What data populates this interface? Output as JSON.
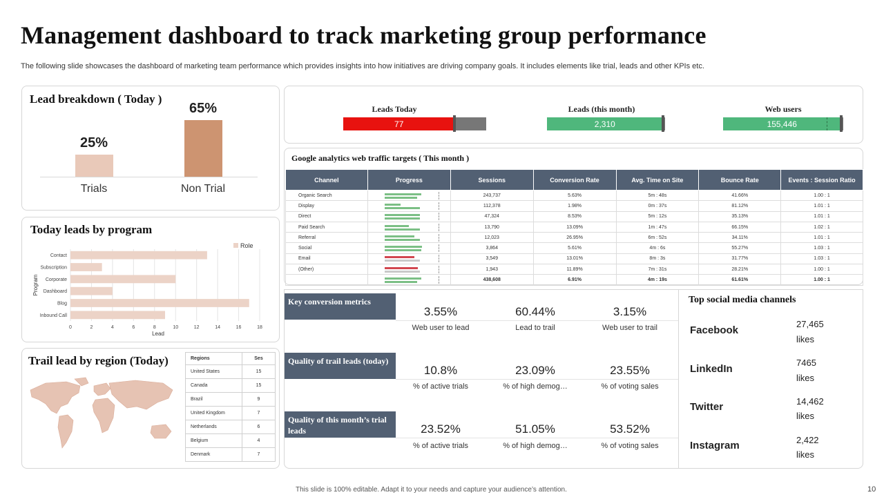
{
  "title": "Management dashboard to track marketing group performance",
  "subtitle": "The following slide showcases the dashboard of marketing team performance which provides insights into how initiatives are driving company goals. It includes elements like trial, leads and other KPIs etc.",
  "lead_breakdown": {
    "title": "Lead breakdown ( Today )",
    "items": [
      {
        "label": "Trials",
        "pct": "25%",
        "value": 25,
        "color": "#e9c9b9"
      },
      {
        "label": "Non Trial",
        "pct": "65%",
        "value": 65,
        "color": "#cd9471"
      }
    ]
  },
  "leads_by_program": {
    "title": "Today leads by program",
    "legend": "Role",
    "xlabel": "Lead",
    "ylabel": "Program",
    "color": "#ecd3c7"
  },
  "region": {
    "title": "Trail lead by region (Today)",
    "col_region": "Regions",
    "col_value": "Ses",
    "rows": [
      {
        "region": "United States",
        "value": "15"
      },
      {
        "region": "Canada",
        "value": "15"
      },
      {
        "region": "Brazil",
        "value": "9"
      },
      {
        "region": "United Kingdom",
        "value": "7"
      },
      {
        "region": "Netherlands",
        "value": "6"
      },
      {
        "region": "Belgium",
        "value": "4"
      },
      {
        "region": "Denmark",
        "value": "7"
      }
    ]
  },
  "kpis": [
    {
      "label": "Leads Today",
      "value": "77",
      "fill": 0.78,
      "color": "#e8120f",
      "track": "#777777"
    },
    {
      "label": "Leads (this month)",
      "value": "2,310",
      "fill": 0.98,
      "color": "#4fb77c",
      "track": "#777777"
    },
    {
      "label": "Web users",
      "value": "155,446",
      "fill": 0.98,
      "color": "#4fb77c",
      "track": "#777777"
    }
  ],
  "ga": {
    "title": "Google analytics web traffic targets ( This month )",
    "headers": [
      "Channel",
      "Progress",
      "Sessions",
      "Conversion Rate",
      "Avg. Time on Site",
      "Bounce Rate",
      "Events : Session Ratio"
    ],
    "rows": [
      {
        "channel": "Organic Search",
        "p1": 0.68,
        "p2": 0.6,
        "c1": "#7bbf85",
        "c2": "#7bbf85",
        "sessions": "243,737",
        "conv": "5.63%",
        "time": "5m : 48s",
        "bounce": "41.66%",
        "ratio": "1.00 : 1"
      },
      {
        "channel": "Display",
        "p1": 0.3,
        "p2": 0.65,
        "c1": "#7bbf85",
        "c2": "#7bbf85",
        "sessions": "112,378",
        "conv": "1.98%",
        "time": "0m : 37s",
        "bounce": "81.12%",
        "ratio": "1.01 : 1"
      },
      {
        "channel": "Direct",
        "p1": 0.65,
        "p2": 0.65,
        "c1": "#7bbf85",
        "c2": "#7bbf85",
        "sessions": "47,324",
        "conv": "8.53%",
        "time": "5m : 12s",
        "bounce": "35.13%",
        "ratio": "1.01 : 1"
      },
      {
        "channel": "Paid Search",
        "p1": 0.45,
        "p2": 0.65,
        "c1": "#7bbf85",
        "c2": "#7bbf85",
        "sessions": "13,790",
        "conv": "13.09%",
        "time": "1m : 47s",
        "bounce": "66.15%",
        "ratio": "1.02 : 1"
      },
      {
        "channel": "Referral",
        "p1": 0.55,
        "p2": 0.65,
        "c1": "#7bbf85",
        "c2": "#7bbf85",
        "sessions": "12,023",
        "conv": "26.95%",
        "time": "6m : 52s",
        "bounce": "34.11%",
        "ratio": "1.01 : 1"
      },
      {
        "channel": "Social",
        "p1": 0.7,
        "p2": 0.68,
        "c1": "#7bbf85",
        "c2": "#7bbf85",
        "sessions": "3,864",
        "conv": "5.61%",
        "time": "4m : 6s",
        "bounce": "55.27%",
        "ratio": "1.03 : 1"
      },
      {
        "channel": "Email",
        "p1": 0.55,
        "p2": 0.65,
        "c1": "#d2464f",
        "c2": "#c9c9c9",
        "sessions": "3,549",
        "conv": "13.01%",
        "time": "8m : 3s",
        "bounce": "31.77%",
        "ratio": "1.03 : 1"
      },
      {
        "channel": "(Other)",
        "p1": 0.62,
        "p2": 0.65,
        "c1": "#d2464f",
        "c2": "#c9c9c9",
        "sessions": "1,943",
        "conv": "11.89%",
        "time": "7m : 31s",
        "bounce": "28.21%",
        "ratio": "1.00 : 1"
      }
    ],
    "total": {
      "p1": 0.68,
      "p2": 0.6,
      "sessions": "438,608",
      "conv": "6.91%",
      "time": "4m : 19s",
      "bounce": "61.61%",
      "ratio": "1.00 : 1"
    }
  },
  "metrics": [
    {
      "heading": "Key conversion metrics",
      "items": [
        {
          "value": "3.55%",
          "label": "Web user to lead"
        },
        {
          "value": "60.44%",
          "label": "Lead to trail"
        },
        {
          "value": "3.15%",
          "label": "Web user to trail"
        }
      ]
    },
    {
      "heading": "Quality of trail leads (today)",
      "items": [
        {
          "value": "10.8%",
          "label": "% of active trials"
        },
        {
          "value": "23.09%",
          "label": "% of high demog…"
        },
        {
          "value": "23.55%",
          "label": "% of voting sales"
        }
      ]
    },
    {
      "heading": "Quality of this month’s trial leads",
      "items": [
        {
          "value": "23.52%",
          "label": "% of active trials"
        },
        {
          "value": "51.05%",
          "label": "% of high demog…"
        },
        {
          "value": "53.52%",
          "label": "% of voting sales"
        }
      ]
    }
  ],
  "social": {
    "title": "Top social media channels",
    "items": [
      {
        "name": "Facebook",
        "count": "27,465",
        "unit": "likes"
      },
      {
        "name": "LinkedIn",
        "count": "7465",
        "unit": "likes"
      },
      {
        "name": "Twitter",
        "count": "14,462",
        "unit": "likes"
      },
      {
        "name": "Instagram",
        "count": "2,422",
        "unit": "likes"
      }
    ]
  },
  "footer": "This slide is 100% editable. Adapt it to your needs and capture your audience’s attention.",
  "page_number": "10",
  "chart_data": [
    {
      "type": "bar",
      "categories": [
        "Trials",
        "Non Trial"
      ],
      "values": [
        25,
        65
      ],
      "title": "Lead breakdown ( Today )",
      "xlabel": "",
      "ylabel": "",
      "ylim": [
        0,
        100
      ]
    },
    {
      "type": "bar",
      "orientation": "horizontal",
      "categories": [
        "Contact",
        "Subscription",
        "Corporate",
        "Dashboard",
        "Blog",
        "Inbound Call"
      ],
      "series": [
        {
          "name": "Role",
          "values": [
            13,
            3,
            10,
            4,
            17,
            9
          ]
        }
      ],
      "title": "Today leads by program",
      "xlabel": "Lead",
      "ylabel": "Program",
      "xlim": [
        0,
        18
      ],
      "xticks": [
        "0",
        "2",
        "4",
        "6",
        "8",
        "10",
        "12",
        "14",
        "16",
        "18"
      ],
      "grid": true,
      "legend": "top-right"
    }
  ]
}
